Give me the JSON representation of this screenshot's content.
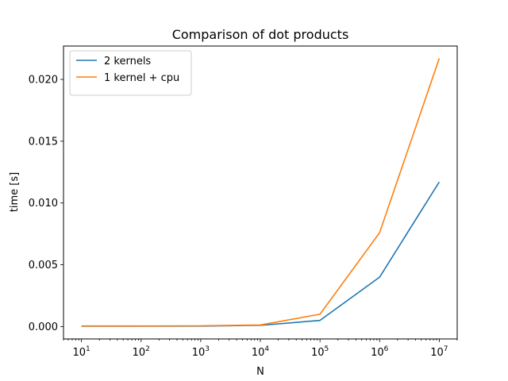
{
  "chart_data": {
    "type": "line",
    "title": "Comparison of dot products",
    "xlabel": "N",
    "ylabel": "time [s]",
    "xscale": "log",
    "xlim": [
      5,
      20000000
    ],
    "ylim": [
      -0.001,
      0.0227
    ],
    "x": [
      10,
      100,
      1000,
      10000,
      100000,
      1000000,
      10000000
    ],
    "x_ticks": [
      {
        "value": 10,
        "base": "10",
        "exp": "1"
      },
      {
        "value": 100,
        "base": "10",
        "exp": "2"
      },
      {
        "value": 1000,
        "base": "10",
        "exp": "3"
      },
      {
        "value": 10000,
        "base": "10",
        "exp": "4"
      },
      {
        "value": 100000,
        "base": "10",
        "exp": "5"
      },
      {
        "value": 1000000,
        "base": "10",
        "exp": "6"
      },
      {
        "value": 10000000,
        "base": "10",
        "exp": "7"
      }
    ],
    "y_ticks": [
      {
        "value": 0.0,
        "label": "0.000"
      },
      {
        "value": 0.005,
        "label": "0.005"
      },
      {
        "value": 0.01,
        "label": "0.010"
      },
      {
        "value": 0.015,
        "label": "0.015"
      },
      {
        "value": 0.02,
        "label": "0.020"
      }
    ],
    "series": [
      {
        "name": "2 kernels",
        "color": "#1f77b4",
        "values": [
          3e-05,
          3e-05,
          4e-05,
          0.0001,
          0.0005,
          0.004,
          0.0117
        ]
      },
      {
        "name": "1 kernel + cpu",
        "color": "#ff7f0e",
        "values": [
          5e-05,
          5e-05,
          6e-05,
          0.00013,
          0.001,
          0.0076,
          0.0217
        ]
      }
    ],
    "legend": "upper-left",
    "grid": false
  }
}
